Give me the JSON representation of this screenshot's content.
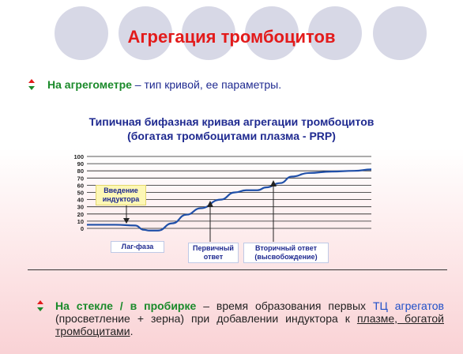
{
  "header": {
    "title": "Агрегация тромбоцитов"
  },
  "bullet1": {
    "lead": "На агрегометре",
    "dash": " – ",
    "rest": "тип кривой, ее параметры."
  },
  "chart_title": {
    "line1": "Типичная бифазная кривая агрегации тромбоцитов",
    "line2": "(богатая тромбоцитами плазма - PRP)"
  },
  "chart_data": {
    "type": "line",
    "y_ticks": [
      "100",
      "90",
      "80",
      "70",
      "60",
      "50",
      "40",
      "30",
      "20",
      "10",
      "0"
    ],
    "ylim": [
      0,
      100
    ],
    "xlim": [
      0,
      1
    ],
    "x": [
      0.0,
      0.1,
      0.17,
      0.2,
      0.22,
      0.25,
      0.3,
      0.35,
      0.4,
      0.47,
      0.52,
      0.56,
      0.6,
      0.63,
      0.68,
      0.72,
      0.78,
      0.86,
      0.94,
      1.0
    ],
    "y": [
      5,
      5,
      4,
      -2,
      -3,
      -3,
      7,
      19,
      28,
      40,
      50,
      53,
      53,
      57,
      63,
      72,
      77,
      79,
      80,
      82
    ],
    "line_color": "#1f4fa8",
    "annotations": {
      "inductor": "Введение индуктора",
      "lag": "Лаг-фаза",
      "primary": "Первичный ответ",
      "secondary": "Вторичный ответ (высвобождение)"
    }
  },
  "bullet2": {
    "lead": "На стекле / в пробирке",
    "part1": " – время образования первых ",
    "tc": "ТЦ агрегатов",
    "part2": " (просветление + зерна) при добавлении индуктора к ",
    "underlined": "плазме, богатой тромбоцитами",
    "end": "."
  },
  "colors": {
    "title": "#e31b1b",
    "bullet_up": "#e31b1b",
    "bullet_down": "#1a8a2a",
    "text_blue": "#1f2a90"
  }
}
